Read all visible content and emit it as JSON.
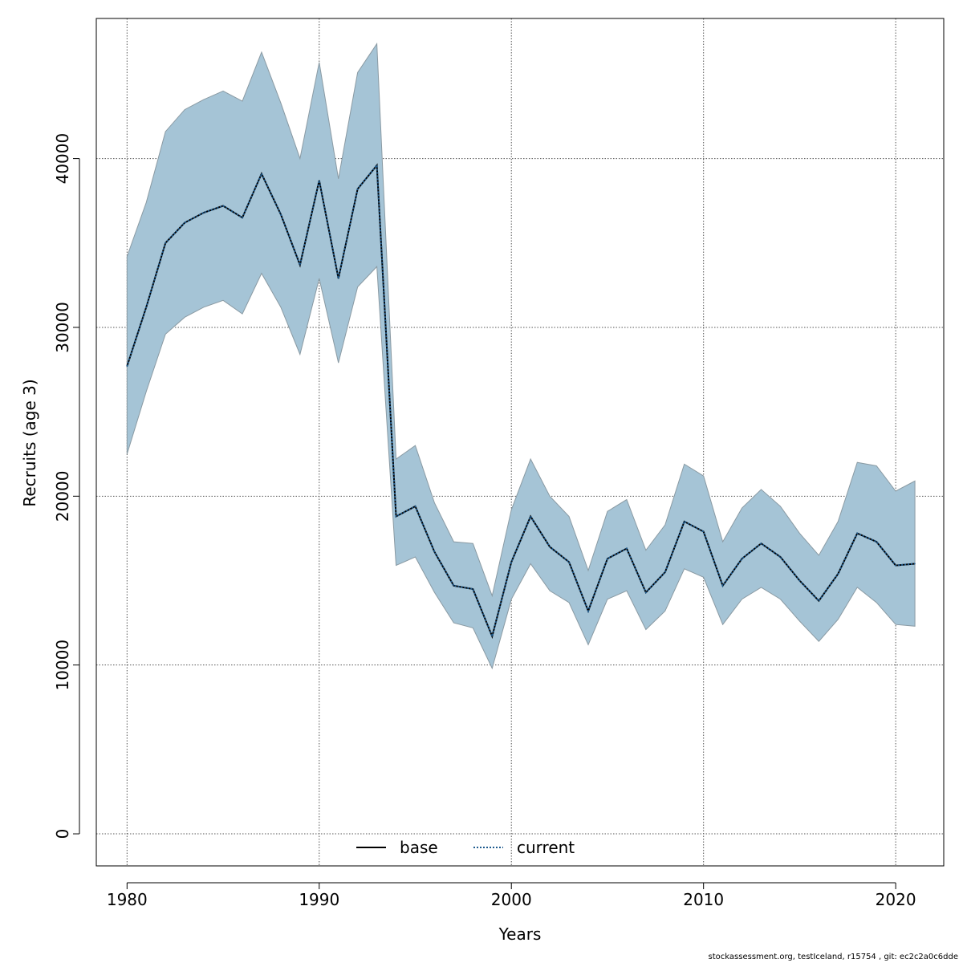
{
  "chart_data": {
    "type": "line",
    "xlabel": "Years",
    "ylabel": "Recruits (age 3)",
    "xlim": [
      1978.4,
      1982.4
    ],
    "ylim": [
      -1900,
      48300
    ],
    "grid": true,
    "legend_position": "bottom-center",
    "xticks": [
      1980,
      1990,
      2000,
      2010,
      2020
    ],
    "yticks": [
      0,
      10000,
      20000,
      30000,
      40000
    ],
    "x": [
      1980,
      1981,
      1982,
      1983,
      1984,
      1985,
      1986,
      1987,
      1988,
      1989,
      1990,
      1991,
      1992,
      1993,
      1994,
      1995,
      1996,
      1997,
      1998,
      1999,
      2000,
      2001,
      2002,
      2003,
      2004,
      2005,
      2006,
      2007,
      2008,
      2009,
      2010,
      2011,
      2012,
      2013,
      2014,
      2015,
      2016,
      2017,
      2018,
      2019,
      2020,
      2021
    ],
    "series": [
      {
        "name": "base",
        "line_style": "solid",
        "color": "#000000",
        "values": [
          27700,
          31200,
          35000,
          36200,
          36800,
          37200,
          36500,
          39100,
          36700,
          33700,
          38700,
          32900,
          38200,
          39600,
          18800,
          19400,
          16700,
          14700,
          14500,
          11700,
          16100,
          18800,
          17000,
          16100,
          13200,
          16300,
          16900,
          14300,
          15500,
          18500,
          17900,
          14700,
          16300,
          17200,
          16400,
          15000,
          13800,
          15400,
          17800,
          17300,
          15900,
          16000
        ]
      },
      {
        "name": "current",
        "line_style": "dotted",
        "color": "#1f5b8e",
        "values": [
          27700,
          31200,
          35000,
          36200,
          36800,
          37200,
          36500,
          39100,
          36700,
          33700,
          38700,
          32900,
          38200,
          39600,
          18800,
          19400,
          16700,
          14700,
          14500,
          11700,
          16100,
          18800,
          17000,
          16100,
          13200,
          16300,
          16900,
          14300,
          15500,
          18500,
          17900,
          14700,
          16300,
          17200,
          16400,
          15000,
          13800,
          15400,
          17800,
          17300,
          15900,
          16000
        ]
      }
    ],
    "confidence_band": {
      "color": "#a5c4d6",
      "lower": [
        22500,
        26200,
        29600,
        30600,
        31200,
        31600,
        30800,
        33200,
        31200,
        28400,
        32900,
        27900,
        32400,
        33600,
        15900,
        16400,
        14300,
        12500,
        12200,
        9800,
        13900,
        16000,
        14400,
        13700,
        11200,
        13900,
        14400,
        12100,
        13200,
        15700,
        15200,
        12400,
        13900,
        14600,
        13900,
        12600,
        11400,
        12700,
        14600,
        13700,
        12400,
        12300
      ],
      "upper": [
        34200,
        37400,
        41600,
        42900,
        43500,
        44000,
        43400,
        46300,
        43300,
        40000,
        45700,
        38800,
        45100,
        46800,
        22200,
        23000,
        19600,
        17300,
        17200,
        14100,
        19200,
        22200,
        20000,
        18800,
        15600,
        19100,
        19800,
        16800,
        18300,
        21900,
        21200,
        17300,
        19300,
        20400,
        19400,
        17800,
        16500,
        18500,
        22000,
        21800,
        20300,
        20900
      ]
    }
  },
  "footer": "stockassessment.org, testIceland, r15754 , git: ec2c2a0c6dde"
}
